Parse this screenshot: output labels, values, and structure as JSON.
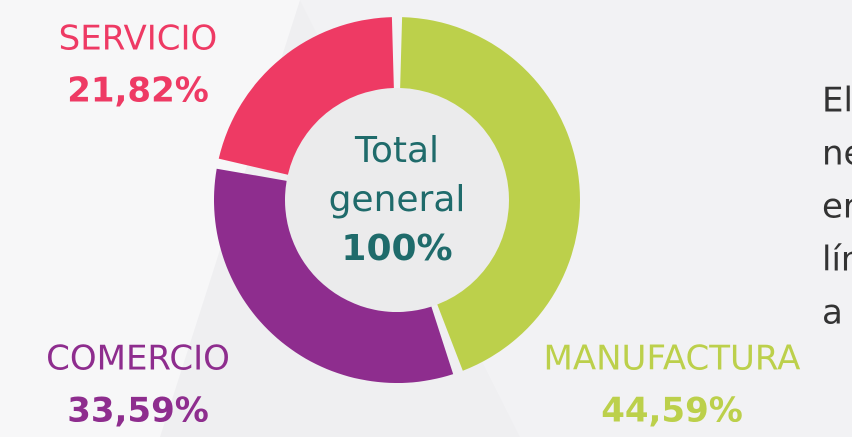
{
  "chart_data": {
    "type": "pie",
    "donut": true,
    "categories": [
      "MANUFACTURA",
      "COMERCIO",
      "SERVICIO"
    ],
    "values": [
      44.59,
      33.59,
      21.82
    ],
    "value_labels": [
      "44,59%",
      "33,59%",
      "21,82%"
    ],
    "colors": [
      "#bcd04b",
      "#8e2d8e",
      "#ee3a64"
    ],
    "center_text": [
      "Total",
      "general",
      "100%"
    ]
  },
  "body_text": [
    "El",
    "ne",
    "er",
    "lín",
    "a"
  ]
}
